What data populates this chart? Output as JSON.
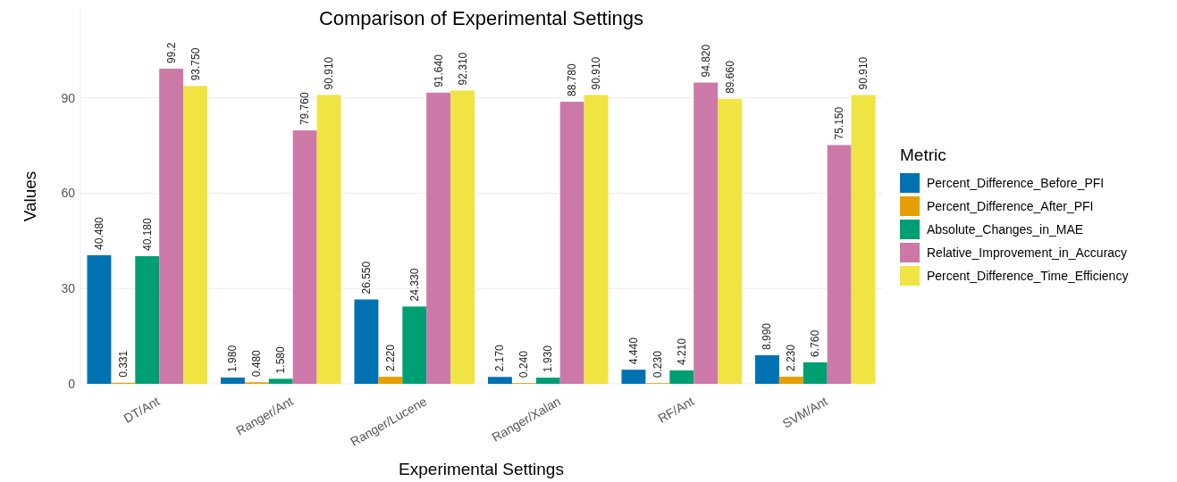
{
  "chart_data": {
    "type": "bar",
    "title": "Comparison of Experimental Settings",
    "xlabel": "Experimental Settings",
    "ylabel": "Values",
    "legend_title": "Metric",
    "legend": "right",
    "grid": "y",
    "categories": [
      "DT/Ant",
      "Ranger/Ant",
      "Ranger/Lucene",
      "Ranger/Xalan",
      "RF/Ant",
      "SVM/Ant"
    ],
    "ylim": [
      0,
      118
    ],
    "yticks": [
      0,
      30,
      60,
      90
    ],
    "series": [
      {
        "name": "Percent_Difference_Before_PFI",
        "color": "#0072b2",
        "values": [
          40.48,
          1.98,
          26.55,
          2.17,
          4.44,
          8.99
        ],
        "value_labels": [
          "40.480",
          "1.980",
          "26.550",
          "2.170",
          "4.440",
          "8.990"
        ]
      },
      {
        "name": "Percent_Difference_After_PFI",
        "color": "#e69f00",
        "values": [
          0.331,
          0.48,
          2.22,
          0.24,
          0.23,
          2.23
        ],
        "value_labels": [
          "0.331",
          "0.480",
          "2.220",
          "0.240",
          "0.230",
          "2.230"
        ]
      },
      {
        "name": "Absolute_Changes_in_MAE",
        "color": "#009e73",
        "values": [
          40.18,
          1.58,
          24.33,
          1.93,
          4.21,
          6.76
        ],
        "value_labels": [
          "40.180",
          "1.580",
          "24.330",
          "1.930",
          "4.210",
          "6.760"
        ]
      },
      {
        "name": "Relative_Improvement_in_Accuracy",
        "color": "#cc79a7",
        "values": [
          99.2,
          79.76,
          91.64,
          88.78,
          94.82,
          75.15
        ],
        "value_labels": [
          "99.2",
          "79.760",
          "91.640",
          "88.780",
          "94.820",
          "75.150"
        ]
      },
      {
        "name": "Percent_Difference_Time_Efficiency",
        "color": "#f0e442",
        "values": [
          93.75,
          90.91,
          92.31,
          90.91,
          89.66,
          90.91
        ],
        "value_labels": [
          "93.750",
          "90.910",
          "92.310",
          "90.910",
          "89.660",
          "90.910"
        ]
      }
    ]
  }
}
